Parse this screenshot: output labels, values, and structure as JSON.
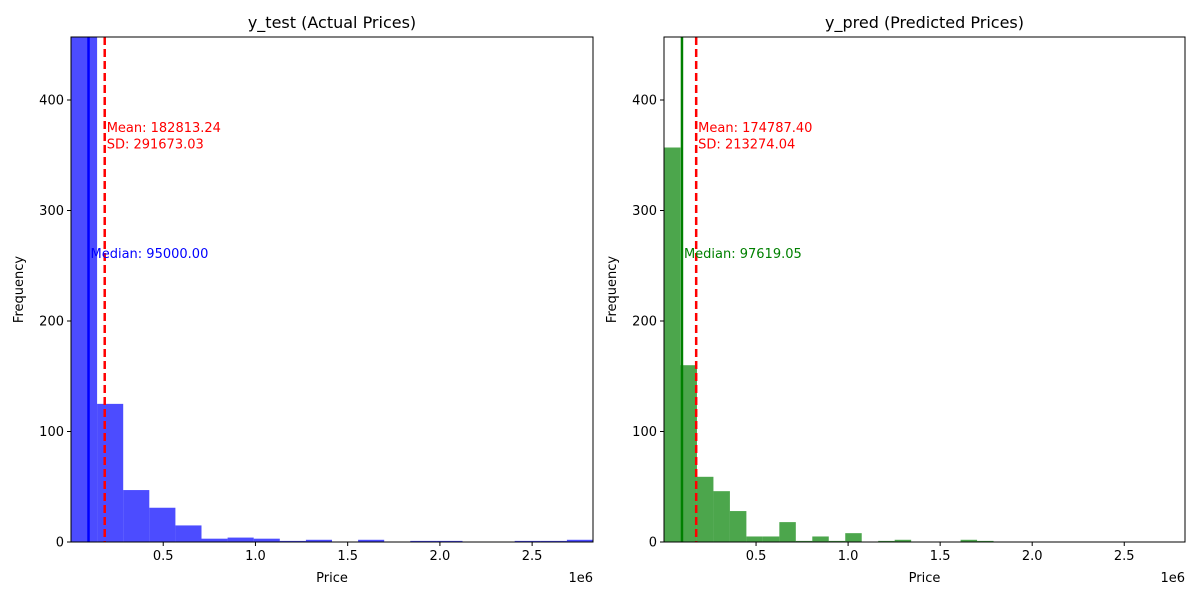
{
  "chart_data": [
    {
      "type": "bar",
      "title": "y_test (Actual Prices)",
      "xlabel": "Price",
      "ylabel": "Frequency",
      "x_offset_label": "1e6",
      "xlim": [
        0,
        2.83
      ],
      "ylim": [
        0,
        457
      ],
      "xticks": [
        0.5,
        1.0,
        1.5,
        2.0,
        2.5
      ],
      "xtick_labels": [
        "0.5",
        "1.0",
        "1.5",
        "2.0",
        "2.5"
      ],
      "yticks": [
        0,
        100,
        200,
        300,
        400
      ],
      "ytick_labels": [
        "0",
        "100",
        "200",
        "300",
        "400"
      ],
      "bar_color": "#0000ff",
      "bin_width": 0.1415,
      "bins": [
        {
          "x0": 0.0,
          "value": 457
        },
        {
          "x0": 0.1415,
          "value": 125
        },
        {
          "x0": 0.283,
          "value": 47
        },
        {
          "x0": 0.4245,
          "value": 31
        },
        {
          "x0": 0.566,
          "value": 15
        },
        {
          "x0": 0.7075,
          "value": 3
        },
        {
          "x0": 0.849,
          "value": 4
        },
        {
          "x0": 0.9905,
          "value": 3
        },
        {
          "x0": 1.132,
          "value": 1
        },
        {
          "x0": 1.2735,
          "value": 2
        },
        {
          "x0": 1.415,
          "value": 0
        },
        {
          "x0": 1.5565,
          "value": 2
        },
        {
          "x0": 1.698,
          "value": 0
        },
        {
          "x0": 1.8395,
          "value": 1
        },
        {
          "x0": 1.981,
          "value": 1
        },
        {
          "x0": 2.1225,
          "value": 0
        },
        {
          "x0": 2.264,
          "value": 0
        },
        {
          "x0": 2.4055,
          "value": 1
        },
        {
          "x0": 2.547,
          "value": 1
        },
        {
          "x0": 2.6885,
          "value": 2
        }
      ],
      "mean_line": {
        "x": 0.1828,
        "color": "#ff0000"
      },
      "median_line": {
        "x": 0.095,
        "color": "#0000ff"
      },
      "annotations": {
        "mean": "Mean: 182813.24",
        "sd": "SD: 291673.03",
        "median": "Median: 95000.00"
      },
      "grid": false
    },
    {
      "type": "bar",
      "title": "y_pred (Predicted Prices)",
      "xlabel": "Price",
      "ylabel": "Frequency",
      "x_offset_label": "1e6",
      "xlim": [
        0,
        2.83
      ],
      "ylim": [
        0,
        457
      ],
      "xticks": [
        0.5,
        1.0,
        1.5,
        2.0,
        2.5
      ],
      "xtick_labels": [
        "0.5",
        "1.0",
        "1.5",
        "2.0",
        "2.5"
      ],
      "yticks": [
        0,
        100,
        200,
        300,
        400
      ],
      "ytick_labels": [
        "0",
        "100",
        "200",
        "300",
        "400"
      ],
      "bar_color": "#008000",
      "bin_width": 0.0895,
      "bins": [
        {
          "x0": 0.0,
          "value": 357
        },
        {
          "x0": 0.0895,
          "value": 160
        },
        {
          "x0": 0.179,
          "value": 59
        },
        {
          "x0": 0.2685,
          "value": 46
        },
        {
          "x0": 0.358,
          "value": 28
        },
        {
          "x0": 0.4475,
          "value": 5
        },
        {
          "x0": 0.537,
          "value": 5
        },
        {
          "x0": 0.6265,
          "value": 18
        },
        {
          "x0": 0.716,
          "value": 1
        },
        {
          "x0": 0.8055,
          "value": 5
        },
        {
          "x0": 0.895,
          "value": 1
        },
        {
          "x0": 0.9845,
          "value": 8
        },
        {
          "x0": 1.074,
          "value": 0
        },
        {
          "x0": 1.1635,
          "value": 1
        },
        {
          "x0": 1.253,
          "value": 2
        },
        {
          "x0": 1.3425,
          "value": 0
        },
        {
          "x0": 1.432,
          "value": 0
        },
        {
          "x0": 1.5215,
          "value": 0
        },
        {
          "x0": 1.611,
          "value": 2
        },
        {
          "x0": 1.7005,
          "value": 1
        }
      ],
      "mean_line": {
        "x": 0.1748,
        "color": "#ff0000"
      },
      "median_line": {
        "x": 0.0976,
        "color": "#008000"
      },
      "annotations": {
        "mean": "Mean: 174787.40",
        "sd": "SD: 213274.04",
        "median": "Median: 97619.05"
      },
      "grid": false
    }
  ]
}
